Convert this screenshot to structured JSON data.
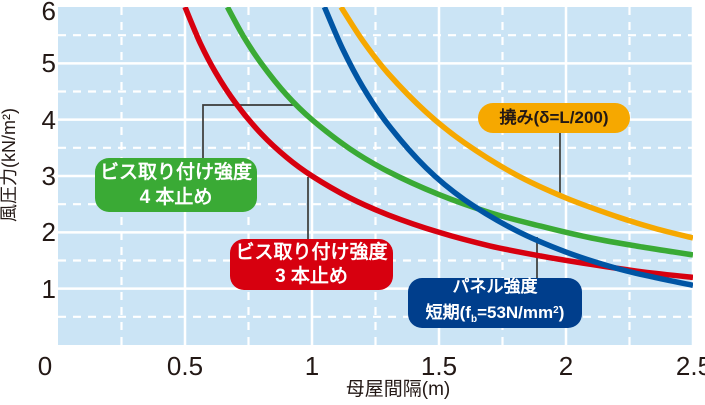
{
  "chart_data": {
    "type": "line",
    "title": "",
    "xlabel": "母屋間隔(m)",
    "ylabel": "風圧力(kN/m²)",
    "xlim": [
      0,
      2.5
    ],
    "ylim": [
      0,
      6
    ],
    "x_ticks": [
      "0",
      "0.5",
      "1",
      "1.5",
      "2",
      "2.5"
    ],
    "y_ticks": [
      "6",
      "5",
      "4",
      "3",
      "2",
      "1"
    ],
    "grid": {
      "plot_bg": "#cbe4f5",
      "solid_line_color": "#ffffff",
      "dashed_line_color": "#ffffff",
      "x_solid_every": 0.5,
      "x_dashed_every": 0.25,
      "y_solid_every": 1.0,
      "y_dashed_every": 0.5,
      "legend_position": "none"
    },
    "series": [
      {
        "id": "vis3",
        "name": "ビス取り付け強度 3本止め",
        "color": "#d7000f",
        "points": [
          [
            0.5,
            6
          ],
          [
            0.56,
            5.36
          ],
          [
            0.62,
            4.84
          ],
          [
            0.7,
            4.29
          ],
          [
            0.8,
            3.75
          ],
          [
            0.9,
            3.33
          ],
          [
            1.0,
            3.0
          ],
          [
            1.15,
            2.61
          ],
          [
            1.3,
            2.31
          ],
          [
            1.5,
            2.0
          ],
          [
            1.7,
            1.76
          ],
          [
            1.9,
            1.58
          ],
          [
            2.1,
            1.43
          ],
          [
            2.3,
            1.3
          ],
          [
            2.5,
            1.2
          ]
        ]
      },
      {
        "id": "vis4",
        "name": "ビス取り付け強度 4本止め",
        "color": "#3aaa35",
        "points": [
          [
            0.667,
            6
          ],
          [
            0.73,
            5.48
          ],
          [
            0.8,
            5.0
          ],
          [
            0.9,
            4.44
          ],
          [
            1.0,
            4.0
          ],
          [
            1.15,
            3.48
          ],
          [
            1.3,
            3.08
          ],
          [
            1.5,
            2.67
          ],
          [
            1.7,
            2.35
          ],
          [
            1.9,
            2.11
          ],
          [
            2.1,
            1.9
          ],
          [
            2.3,
            1.74
          ],
          [
            2.5,
            1.6
          ]
        ]
      },
      {
        "id": "deflection",
        "name": "撓み(δ=L/200)",
        "color": "#f6a800",
        "points": [
          [
            1.114,
            6
          ],
          [
            1.2,
            5.4
          ],
          [
            1.3,
            4.82
          ],
          [
            1.45,
            4.13
          ],
          [
            1.6,
            3.59
          ],
          [
            1.8,
            3.03
          ],
          [
            2.0,
            2.61
          ],
          [
            2.2,
            2.28
          ],
          [
            2.35,
            2.07
          ],
          [
            2.5,
            1.9
          ]
        ]
      },
      {
        "id": "panel",
        "name": "パネル強度 短期(fb=53N/mm²)",
        "color": "#0055a4",
        "points": [
          [
            1.049,
            6
          ],
          [
            1.12,
            5.26
          ],
          [
            1.2,
            4.58
          ],
          [
            1.3,
            3.91
          ],
          [
            1.45,
            3.14
          ],
          [
            1.6,
            2.58
          ],
          [
            1.8,
            2.04
          ],
          [
            2.0,
            1.65
          ],
          [
            2.2,
            1.36
          ],
          [
            2.35,
            1.2
          ],
          [
            2.5,
            1.06
          ]
        ]
      }
    ],
    "annotations": [
      {
        "id": "green",
        "line1": "ビス取り付け強度",
        "line2": "4 本止め",
        "bg": "#3aaa35",
        "fg": "#ffffff"
      },
      {
        "id": "red",
        "line1": "ビス取り付け強度",
        "line2": "3 本止め",
        "bg": "#d7000f",
        "fg": "#ffffff"
      },
      {
        "id": "blue",
        "line1": "パネル強度",
        "line2_parts": [
          "短期(f",
          "b",
          "=53N/mm",
          "2",
          ")"
        ],
        "bg": "#003e8c",
        "fg": "#ffffff"
      },
      {
        "id": "orange",
        "text": "撓み(δ=L/200)",
        "bg": "#f6a800",
        "fg": "#231815"
      }
    ]
  }
}
